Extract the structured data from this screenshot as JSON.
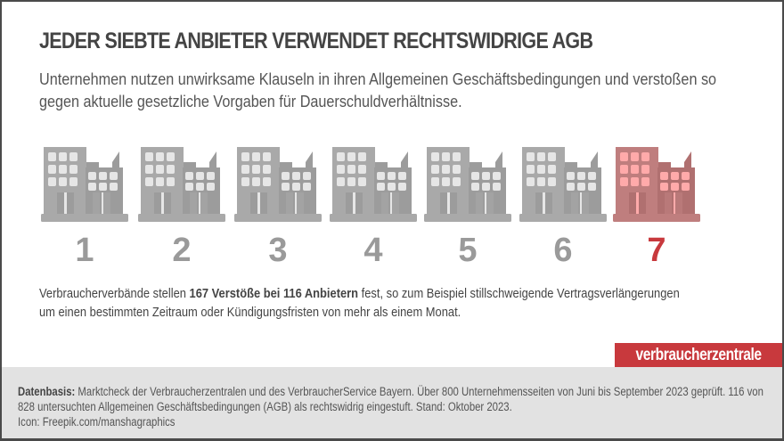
{
  "header": {
    "title": "JEDER SIEBTE ANBIETER VERWENDET RECHTSWIDRIGE AGB",
    "subtitle": "Unternehmen nutzen unwirksame Klauseln in ihren Allgemeinen Geschäftsbedingungen und verstoßen so gegen aktuelle gesetzliche Vorgaben für Dauerschuldverhältnisse."
  },
  "icons": {
    "building_icon": "building-icon",
    "colors": {
      "default_body": "#a9a9a9",
      "default_dark": "#9c9c9c",
      "default_window": "#e6e6e6",
      "highlight_body": "#bf7e7e",
      "highlight_dark": "#b07070",
      "highlight_window": "#ffaaaa",
      "highlight_number": "#c8393d",
      "default_number": "#9a9a9a"
    }
  },
  "buildings": [
    {
      "label": "1",
      "highlighted": false
    },
    {
      "label": "2",
      "highlighted": false
    },
    {
      "label": "3",
      "highlighted": false
    },
    {
      "label": "4",
      "highlighted": false
    },
    {
      "label": "5",
      "highlighted": false
    },
    {
      "label": "6",
      "highlighted": false
    },
    {
      "label": "7",
      "highlighted": true
    }
  ],
  "body": {
    "pre": "Verbraucherverbände stellen ",
    "bold": "167 Verstöße bei 116 Anbietern",
    "post": " fest, so zum Beispiel stillschweigende Vertragsverlängerungen um einen bestimmten Zeitraum oder Kündigungsfristen von mehr als einem Monat."
  },
  "brand": {
    "label": "verbraucherzentrale",
    "color": "#c8393d"
  },
  "footer": {
    "label": "Datenbasis:",
    "text": " Marktcheck der Verbraucherzentralen und des VerbraucherService Bayern. Über 800 Unternehmensseiten von Juni bis September 2023 geprüft. 116 von 828 untersuchten Allgemeinen Geschäftsbedingungen (AGB) als rechtswidrig eingestuft. Stand: Oktober 2023.",
    "credit": "Icon: Freepik.com/manshagraphics"
  }
}
